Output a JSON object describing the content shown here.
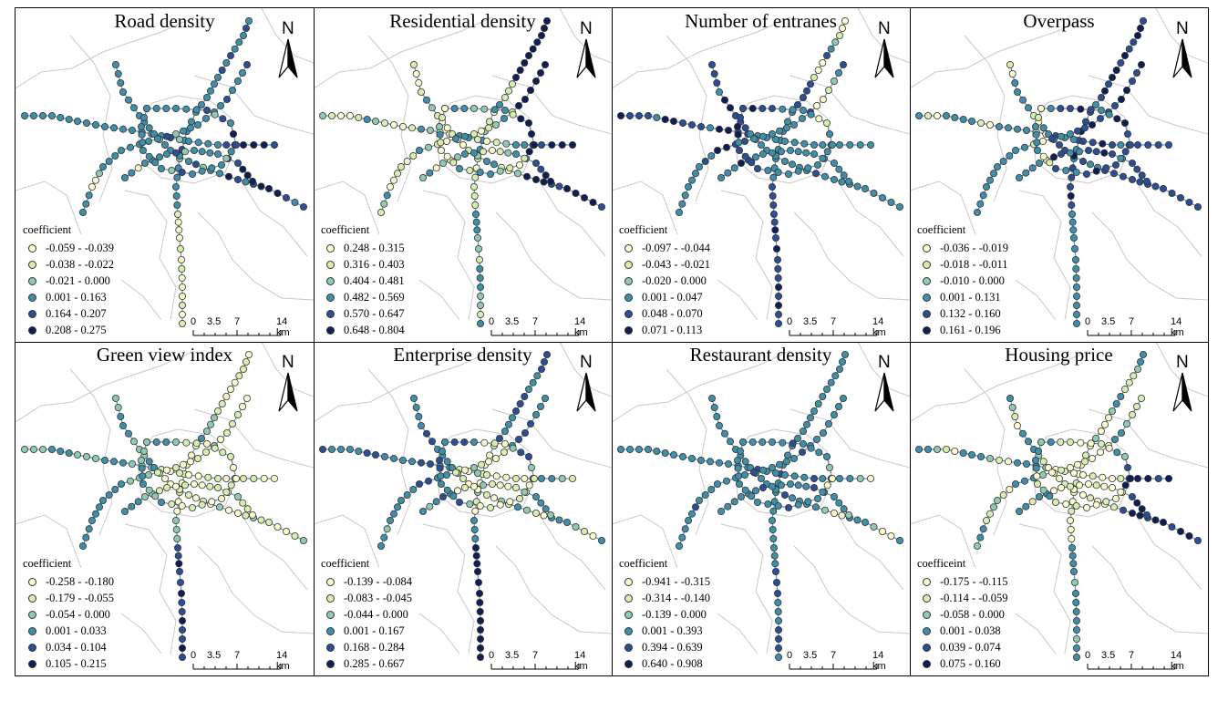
{
  "colors": {
    "class1": "#fbfdd0",
    "class2": "#d8edb0",
    "class3": "#8fcab3",
    "class4": "#3f8fab",
    "class5": "#2b4e94",
    "class6": "#0f1f55",
    "line": "#6f8fa0",
    "boundary": "#c8c8c8"
  },
  "north_letter": "N",
  "scale": {
    "l0": "0",
    "l1": "3.5",
    "l2": "7",
    "l3": "14 km"
  },
  "panels": [
    {
      "title": "Road density",
      "legend_title": "coefficient",
      "legend": [
        "-0.059 - -0.039",
        "-0.038 - -0.022",
        "-0.021 - 0.000",
        "0.001 - 0.163",
        "0.164 - 0.207",
        "0.208 - 0.275"
      ]
    },
    {
      "title": "Residential density",
      "legend_title": "coefficient",
      "legend": [
        "0.248 - 0.315",
        "0.316 - 0.403",
        "0.404 - 0.481",
        "0.482 - 0.569",
        "0.570 - 0.647",
        "0.648 - 0.804"
      ]
    },
    {
      "title": "Number of entranes",
      "legend_title": "coefficient",
      "legend": [
        "-0.097 - -0.044",
        "-0.043 - -0.021",
        "-0.020 - 0.000",
        "0.001 - 0.047",
        "0.048 - 0.070",
        "0.071 - 0.113"
      ]
    },
    {
      "title": "Overpass",
      "legend_title": "coefficient",
      "legend": [
        "-0.036 - -0.019",
        "-0.018 - -0.011",
        "-0.010 - 0.000",
        "0.001 - 0.131",
        "0.132 - 0.160",
        "0.161 - 0.196"
      ]
    },
    {
      "title": "Green view index",
      "legend_title": "coefficient",
      "legend": [
        "-0.258 - -0.180",
        "-0.179 - -0.055",
        "-0.054 - 0.000",
        "0.001 - 0.033",
        "0.034 - 0.104",
        "0.105 - 0.215"
      ]
    },
    {
      "title": "Enterprise density",
      "legend_title": "coefficient",
      "legend": [
        "-0.139 - -0.084",
        "-0.083 - -0.045",
        "-0.044 - 0.000",
        "0.001 - 0.167",
        "0.168 - 0.284",
        "0.285 - 0.667"
      ]
    },
    {
      "title": "Restaurant density",
      "legend_title": "coefficient",
      "legend": [
        "-0.941 - -0.315",
        "-0.314 - -0.140",
        "-0.139 - 0.000",
        "0.001 - 0.393",
        "0.394 - 0.639",
        "0.640 - 0.908"
      ]
    },
    {
      "title": "Housing price",
      "legend_title": "coefficeint",
      "legend": [
        "-0.175 - -0.115",
        "-0.114 - -0.059",
        "-0.058 - 0.000",
        "0.001 - 0.038",
        "0.039 - 0.074",
        "0.075 - 0.160"
      ]
    }
  ]
}
